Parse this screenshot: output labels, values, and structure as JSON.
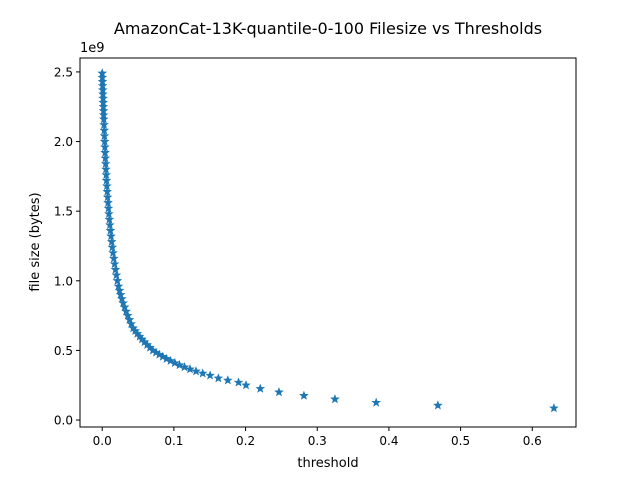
{
  "chart_data": {
    "type": "scatter",
    "title": "AmazonCat-13K-quantile-0-100 Filesize vs Thresholds",
    "xlabel": "threshold",
    "ylabel": "file size (bytes)",
    "y_offset_label": "1e9",
    "marker": "star",
    "xlim": [
      -0.031,
      0.661
    ],
    "ylim": [
      -0.05,
      2.6
    ],
    "x_ticks": [
      0.0,
      0.1,
      0.2,
      0.3,
      0.4,
      0.5,
      0.6
    ],
    "x_tick_labels": [
      "0.0",
      "0.1",
      "0.2",
      "0.3",
      "0.4",
      "0.5",
      "0.6"
    ],
    "y_ticks": [
      0.0,
      0.5,
      1.0,
      1.5,
      2.0,
      2.5
    ],
    "y_tick_labels": [
      "0.0",
      "0.5",
      "1.0",
      "1.5",
      "2.0",
      "2.5"
    ],
    "grid": false,
    "series": [
      {
        "name": "filesize",
        "color": "#1f77b4",
        "x": [
          0.0,
          0.0002,
          0.0004,
          0.0006,
          0.0008,
          0.001,
          0.0012,
          0.0014,
          0.0016,
          0.0018,
          0.002,
          0.0022,
          0.0025,
          0.0028,
          0.0031,
          0.0034,
          0.0037,
          0.004,
          0.0044,
          0.0048,
          0.0052,
          0.0056,
          0.006,
          0.0065,
          0.007,
          0.0075,
          0.0081,
          0.0087,
          0.0093,
          0.01,
          0.0107,
          0.0115,
          0.0123,
          0.0132,
          0.0141,
          0.0151,
          0.0162,
          0.0173,
          0.0185,
          0.0198,
          0.0212,
          0.0227,
          0.0242,
          0.0258,
          0.0275,
          0.0293,
          0.0313,
          0.0334,
          0.0356,
          0.038,
          0.0405,
          0.0432,
          0.046,
          0.049,
          0.0522,
          0.0555,
          0.059,
          0.0627,
          0.0666,
          0.0707,
          0.075,
          0.0796,
          0.0845,
          0.0897,
          0.0953,
          0.1013,
          0.1078,
          0.1148,
          0.1225,
          0.1309,
          0.1402,
          0.1505,
          0.162,
          0.1752,
          0.1902,
          0.2006,
          0.2205,
          0.2466,
          0.2814,
          0.3247,
          0.3822,
          0.4683,
          0.6302
        ],
        "y": [
          2.49,
          2.46,
          2.43,
          2.4,
          2.37,
          2.34,
          2.31,
          2.28,
          2.25,
          2.22,
          2.19,
          2.16,
          2.12,
          2.08,
          2.04,
          2.0,
          1.96,
          1.92,
          1.88,
          1.84,
          1.8,
          1.76,
          1.72,
          1.68,
          1.64,
          1.6,
          1.56,
          1.52,
          1.48,
          1.44,
          1.4,
          1.36,
          1.32,
          1.28,
          1.24,
          1.2,
          1.16,
          1.12,
          1.08,
          1.04,
          1.0,
          0.96,
          0.93,
          0.9,
          0.87,
          0.84,
          0.81,
          0.78,
          0.75,
          0.72,
          0.69,
          0.66,
          0.64,
          0.62,
          0.6,
          0.58,
          0.56,
          0.54,
          0.52,
          0.5,
          0.485,
          0.47,
          0.455,
          0.44,
          0.425,
          0.41,
          0.395,
          0.38,
          0.365,
          0.35,
          0.335,
          0.32,
          0.3,
          0.285,
          0.27,
          0.25,
          0.225,
          0.2,
          0.175,
          0.15,
          0.125,
          0.105,
          0.085
        ]
      }
    ]
  }
}
